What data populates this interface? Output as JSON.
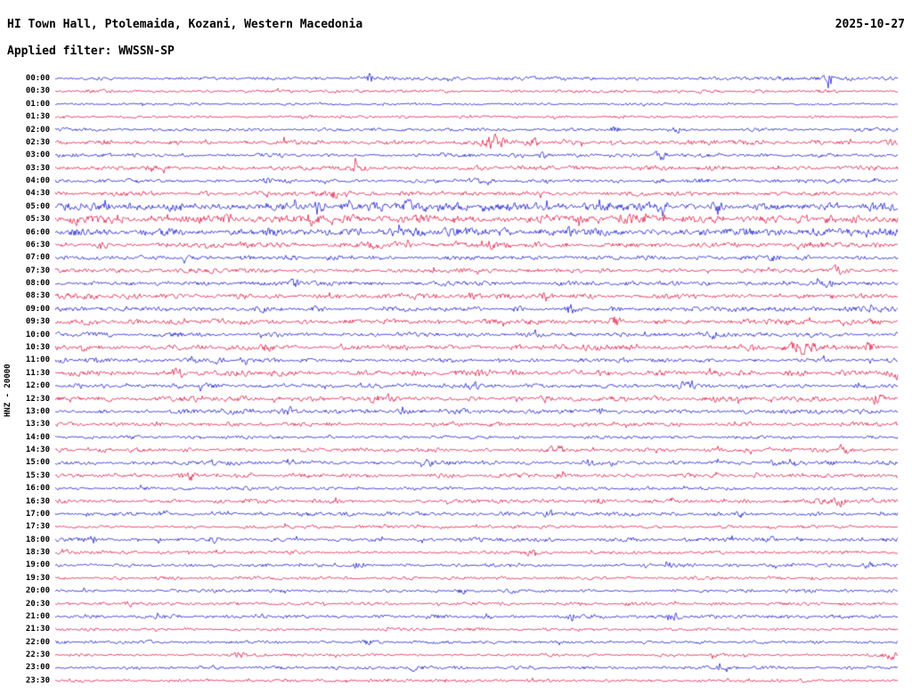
{
  "header": {
    "title": "HI Town Hall, Ptolemaida, Kozani, Western Macedonia",
    "date": "2025-10-27",
    "filter_label": "Applied filter: WWSSN-SP"
  },
  "axis": {
    "y_label": "HNZ - 20000"
  },
  "chart_data": {
    "type": "line",
    "subtype": "helicorder-seismogram",
    "title": "HI Town Hall, Ptolemaida, Kozani, Western Macedonia",
    "date": "2025-10-27",
    "filter": "WWSSN-SP",
    "channel": "HNZ",
    "scale": "20000",
    "trace_duration_minutes": 30,
    "start_time": "00:00",
    "end_time": "23:30",
    "legend_position": "none",
    "grid": false,
    "colors": {
      "blue": "#1414cc",
      "red": "#dc1440"
    },
    "traces": [
      {
        "time": "00:00",
        "color": "blue",
        "amp": 1.2,
        "events": [
          {
            "x": 0.373,
            "a": 3.5
          },
          {
            "x": 0.918,
            "a": 8,
            "w": 0.004
          }
        ]
      },
      {
        "time": "00:30",
        "color": "red",
        "amp": 1.0,
        "events": []
      },
      {
        "time": "01:00",
        "color": "blue",
        "amp": 0.9,
        "events": []
      },
      {
        "time": "01:30",
        "color": "red",
        "amp": 0.9,
        "events": []
      },
      {
        "time": "02:00",
        "color": "blue",
        "amp": 1.1,
        "events": [
          {
            "x": 0.664,
            "a": 2.5
          },
          {
            "x": 0.74,
            "a": 2
          }
        ]
      },
      {
        "time": "02:30",
        "color": "red",
        "amp": 1.6,
        "events": [
          {
            "x": 0.521,
            "a": 7,
            "w": 0.012
          },
          {
            "x": 0.569,
            "a": 3
          },
          {
            "x": 0.995,
            "a": 3
          }
        ]
      },
      {
        "time": "03:00",
        "color": "blue",
        "amp": 1.3,
        "events": [
          {
            "x": 0.579,
            "a": 2.5
          },
          {
            "x": 0.717,
            "a": 3
          }
        ]
      },
      {
        "time": "03:30",
        "color": "red",
        "amp": 1.5,
        "events": [
          {
            "x": 0.199,
            "a": 2
          },
          {
            "x": 0.357,
            "a": 3
          }
        ]
      },
      {
        "time": "04:00",
        "color": "blue",
        "amp": 1.4,
        "events": [
          {
            "x": 0.252,
            "a": 2
          }
        ]
      },
      {
        "time": "04:30",
        "color": "red",
        "amp": 1.4,
        "events": [
          {
            "x": 0.331,
            "a": 4
          },
          {
            "x": 0.347,
            "a": 3
          }
        ]
      },
      {
        "time": "05:00",
        "color": "blue",
        "amp": 2.8,
        "events": [
          {
            "x": 0.421,
            "a": 2
          },
          {
            "x": 0.674,
            "a": 2
          }
        ]
      },
      {
        "time": "05:30",
        "color": "red",
        "amp": 2.6,
        "events": [
          {
            "x": 0.204,
            "a": 4
          },
          {
            "x": 0.304,
            "a": 3
          },
          {
            "x": 0.685,
            "a": 3
          },
          {
            "x": 0.949,
            "a": 3
          }
        ]
      },
      {
        "time": "06:00",
        "color": "blue",
        "amp": 2.6,
        "events": [
          {
            "x": 0.252,
            "a": 3
          },
          {
            "x": 0.315,
            "a": 3
          },
          {
            "x": 0.611,
            "a": 2
          }
        ]
      },
      {
        "time": "06:30",
        "color": "red",
        "amp": 1.8,
        "events": [
          {
            "x": 0.056,
            "a": 4
          },
          {
            "x": 0.378,
            "a": 2
          },
          {
            "x": 0.516,
            "a": 3
          }
        ]
      },
      {
        "time": "07:00",
        "color": "blue",
        "amp": 1.5,
        "events": [
          {
            "x": 0.854,
            "a": 2
          }
        ]
      },
      {
        "time": "07:30",
        "color": "red",
        "amp": 1.5,
        "events": [
          {
            "x": 0.928,
            "a": 3.5
          }
        ]
      },
      {
        "time": "08:00",
        "color": "blue",
        "amp": 1.5,
        "events": [
          {
            "x": 0.283,
            "a": 3
          },
          {
            "x": 0.918,
            "a": 3
          }
        ]
      },
      {
        "time": "08:30",
        "color": "red",
        "amp": 1.8,
        "events": [
          {
            "x": 0.495,
            "a": 2.5
          }
        ]
      },
      {
        "time": "09:00",
        "color": "blue",
        "amp": 1.8,
        "events": [
          {
            "x": 0.611,
            "a": 3.5
          }
        ]
      },
      {
        "time": "09:30",
        "color": "red",
        "amp": 1.8,
        "events": [
          {
            "x": 0.664,
            "a": 4
          },
          {
            "x": 0.939,
            "a": 3
          }
        ]
      },
      {
        "time": "10:00",
        "color": "blue",
        "amp": 1.5,
        "events": [
          {
            "x": 0.78,
            "a": 2.5
          }
        ]
      },
      {
        "time": "10:30",
        "color": "red",
        "amp": 1.8,
        "events": [
          {
            "x": 0.035,
            "a": 3.5
          },
          {
            "x": 0.252,
            "a": 3
          },
          {
            "x": 0.886,
            "a": 5,
            "w": 0.015
          },
          {
            "x": 0.965,
            "a": 3.5
          }
        ]
      },
      {
        "time": "11:00",
        "color": "blue",
        "amp": 1.5,
        "events": [
          {
            "x": 0.627,
            "a": 3
          }
        ]
      },
      {
        "time": "11:30",
        "color": "red",
        "amp": 1.9,
        "events": [
          {
            "x": 0.146,
            "a": 4
          },
          {
            "x": 0.505,
            "a": 2.5
          },
          {
            "x": 0.997,
            "a": 3.5
          }
        ]
      },
      {
        "time": "12:00",
        "color": "blue",
        "amp": 1.6,
        "events": [
          {
            "x": 0.495,
            "a": 3
          },
          {
            "x": 0.748,
            "a": 3
          },
          {
            "x": 0.817,
            "a": 3
          }
        ]
      },
      {
        "time": "12:30",
        "color": "red",
        "amp": 1.9,
        "events": [
          {
            "x": 0.378,
            "a": 2.5
          },
          {
            "x": 0.976,
            "a": 4
          }
        ]
      },
      {
        "time": "13:00",
        "color": "blue",
        "amp": 1.6,
        "events": [
          {
            "x": 0.278,
            "a": 3.5
          },
          {
            "x": 0.643,
            "a": 3.5
          }
        ]
      },
      {
        "time": "13:30",
        "color": "red",
        "amp": 1.4,
        "events": []
      },
      {
        "time": "14:00",
        "color": "blue",
        "amp": 1.1,
        "events": []
      },
      {
        "time": "14:30",
        "color": "red",
        "amp": 1.4,
        "events": [
          {
            "x": 0.6,
            "a": 2.5
          },
          {
            "x": 0.939,
            "a": 2.5
          }
        ]
      },
      {
        "time": "15:00",
        "color": "blue",
        "amp": 1.4,
        "events": [
          {
            "x": 0.183,
            "a": 3
          },
          {
            "x": 0.442,
            "a": 3
          },
          {
            "x": 0.632,
            "a": 2.5
          }
        ]
      },
      {
        "time": "15:30",
        "color": "red",
        "amp": 1.5,
        "events": [
          {
            "x": 0.162,
            "a": 3.5
          }
        ]
      },
      {
        "time": "16:00",
        "color": "blue",
        "amp": 1.1,
        "events": []
      },
      {
        "time": "16:30",
        "color": "red",
        "amp": 1.4,
        "events": [
          {
            "x": 0.933,
            "a": 5
          }
        ]
      },
      {
        "time": "17:00",
        "color": "blue",
        "amp": 1.4,
        "events": [
          {
            "x": 0.13,
            "a": 2.5
          },
          {
            "x": 0.585,
            "a": 2.5
          },
          {
            "x": 0.812,
            "a": 2.5
          }
        ]
      },
      {
        "time": "17:30",
        "color": "red",
        "amp": 1.1,
        "events": []
      },
      {
        "time": "18:00",
        "color": "blue",
        "amp": 1.4,
        "events": [
          {
            "x": 0.045,
            "a": 3
          },
          {
            "x": 0.188,
            "a": 3.5
          },
          {
            "x": 0.849,
            "a": 2.5
          }
        ]
      },
      {
        "time": "18:30",
        "color": "red",
        "amp": 1.1,
        "events": [
          {
            "x": 0.563,
            "a": 2.5
          }
        ]
      },
      {
        "time": "19:00",
        "color": "blue",
        "amp": 1.2,
        "events": [
          {
            "x": 0.357,
            "a": 2
          },
          {
            "x": 0.727,
            "a": 2.5
          },
          {
            "x": 0.965,
            "a": 2.5
          }
        ]
      },
      {
        "time": "19:30",
        "color": "red",
        "amp": 1.1,
        "events": []
      },
      {
        "time": "20:00",
        "color": "blue",
        "amp": 1.1,
        "events": [
          {
            "x": 0.484,
            "a": 2
          },
          {
            "x": 0.542,
            "a": 2
          }
        ]
      },
      {
        "time": "20:30",
        "color": "red",
        "amp": 1.1,
        "events": [
          {
            "x": 0.088,
            "a": 2
          }
        ]
      },
      {
        "time": "21:00",
        "color": "blue",
        "amp": 1.3,
        "events": [
          {
            "x": 0.611,
            "a": 3.5
          },
          {
            "x": 0.733,
            "a": 2.5
          }
        ]
      },
      {
        "time": "21:30",
        "color": "red",
        "amp": 1.0,
        "events": []
      },
      {
        "time": "22:00",
        "color": "blue",
        "amp": 1.1,
        "events": [
          {
            "x": 0.368,
            "a": 2.5
          }
        ]
      },
      {
        "time": "22:30",
        "color": "red",
        "amp": 1.1,
        "events": [
          {
            "x": 0.22,
            "a": 2.5
          },
          {
            "x": 0.992,
            "a": 3.5
          }
        ]
      },
      {
        "time": "23:00",
        "color": "blue",
        "amp": 1.1,
        "events": [
          {
            "x": 0.426,
            "a": 2
          },
          {
            "x": 0.791,
            "a": 2
          }
        ]
      },
      {
        "time": "23:30",
        "color": "red",
        "amp": 1.0,
        "events": []
      }
    ]
  }
}
